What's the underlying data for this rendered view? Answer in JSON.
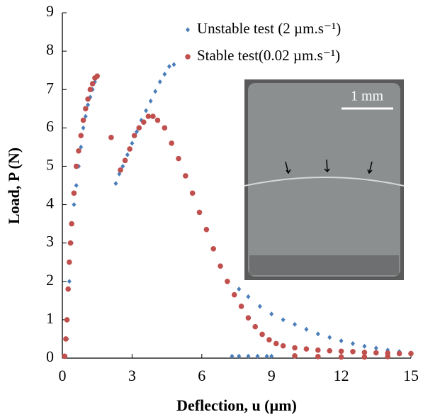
{
  "chart_data": {
    "type": "scatter",
    "xlabel": "Deflection, u (µm)",
    "ylabel": "Load, P (N)",
    "xlim": [
      0,
      15
    ],
    "ylim": [
      0,
      9
    ],
    "xticks": [
      0,
      3,
      6,
      9,
      12,
      15
    ],
    "yticks": [
      0,
      1,
      2,
      3,
      4,
      5,
      6,
      7,
      8,
      9
    ],
    "grid": false,
    "legend_loc": "upper right",
    "annotations": [
      "1 mm"
    ],
    "series": [
      {
        "name": "Unstable test (2 µm.s⁻¹)",
        "color": "#4a7ebb",
        "marker": "diamond",
        "x": [
          0.1,
          0.2,
          0.3,
          0.4,
          0.5,
          0.6,
          0.7,
          0.8,
          0.9,
          1.0,
          1.1,
          1.2,
          1.3,
          1.4,
          1.45,
          2.3,
          2.45,
          2.6,
          2.8,
          3.0,
          3.2,
          3.4,
          3.6,
          3.8,
          4.0,
          4.2,
          4.4,
          4.6,
          4.8,
          7.3,
          7.6,
          8.0,
          8.4,
          8.8,
          9.0,
          7.6,
          8.0,
          8.5,
          9.0,
          9.5,
          10.0,
          10.5,
          11.0,
          11.5,
          12.0,
          12.5,
          13.0,
          13.5,
          14.0,
          14.5,
          15.0
        ],
        "values": [
          0.05,
          0.5,
          2.0,
          3.0,
          4.0,
          4.5,
          5.0,
          5.5,
          6.0,
          6.3,
          6.6,
          6.8,
          7.0,
          7.2,
          7.3,
          4.55,
          4.8,
          5.0,
          5.3,
          5.6,
          5.9,
          6.2,
          6.45,
          6.7,
          6.95,
          7.2,
          7.4,
          7.6,
          7.65,
          0.05,
          0.05,
          0.05,
          0.05,
          0.05,
          0.05,
          1.8,
          1.6,
          1.35,
          1.15,
          1.0,
          0.88,
          0.75,
          0.63,
          0.54,
          0.45,
          0.38,
          0.31,
          0.26,
          0.21,
          0.17,
          0.13
        ]
      },
      {
        "name": "Stable test(0.02 µm.s⁻¹)",
        "color": "#c0504d",
        "marker": "circle",
        "x": [
          0.1,
          0.15,
          0.2,
          0.25,
          0.3,
          0.35,
          0.4,
          0.5,
          0.6,
          0.7,
          0.8,
          0.9,
          1.0,
          1.1,
          1.2,
          1.3,
          1.4,
          1.5,
          2.1,
          2.5,
          2.7,
          2.9,
          3.1,
          3.3,
          3.5,
          3.7,
          3.9,
          4.1,
          4.4,
          4.7,
          5.0,
          5.3,
          5.6,
          5.9,
          6.2,
          6.5,
          6.8,
          7.1,
          7.4,
          7.7,
          8.0,
          8.3,
          8.6,
          8.9,
          9.2,
          9.5,
          10.0,
          10.5,
          11.0,
          11.5,
          12.0,
          12.5,
          13.0,
          13.5,
          14.0,
          14.5,
          15.0,
          10.0,
          11.0,
          12.0,
          13.0,
          14.0
        ],
        "values": [
          0.05,
          0.5,
          1.0,
          1.8,
          2.5,
          3.0,
          3.5,
          4.3,
          5.0,
          5.4,
          5.8,
          6.2,
          6.5,
          6.75,
          7.0,
          7.15,
          7.3,
          7.35,
          5.75,
          4.9,
          5.15,
          5.45,
          5.8,
          6.0,
          6.15,
          6.3,
          6.3,
          6.2,
          6.0,
          5.6,
          5.2,
          4.75,
          4.3,
          3.8,
          3.35,
          2.85,
          2.4,
          2.0,
          1.65,
          1.35,
          1.05,
          0.82,
          0.62,
          0.48,
          0.38,
          0.32,
          0.27,
          0.24,
          0.21,
          0.19,
          0.18,
          0.17,
          0.15,
          0.14,
          0.13,
          0.12,
          0.12,
          0.06,
          0.04,
          0.03,
          0.03,
          0.04
        ]
      }
    ]
  }
}
